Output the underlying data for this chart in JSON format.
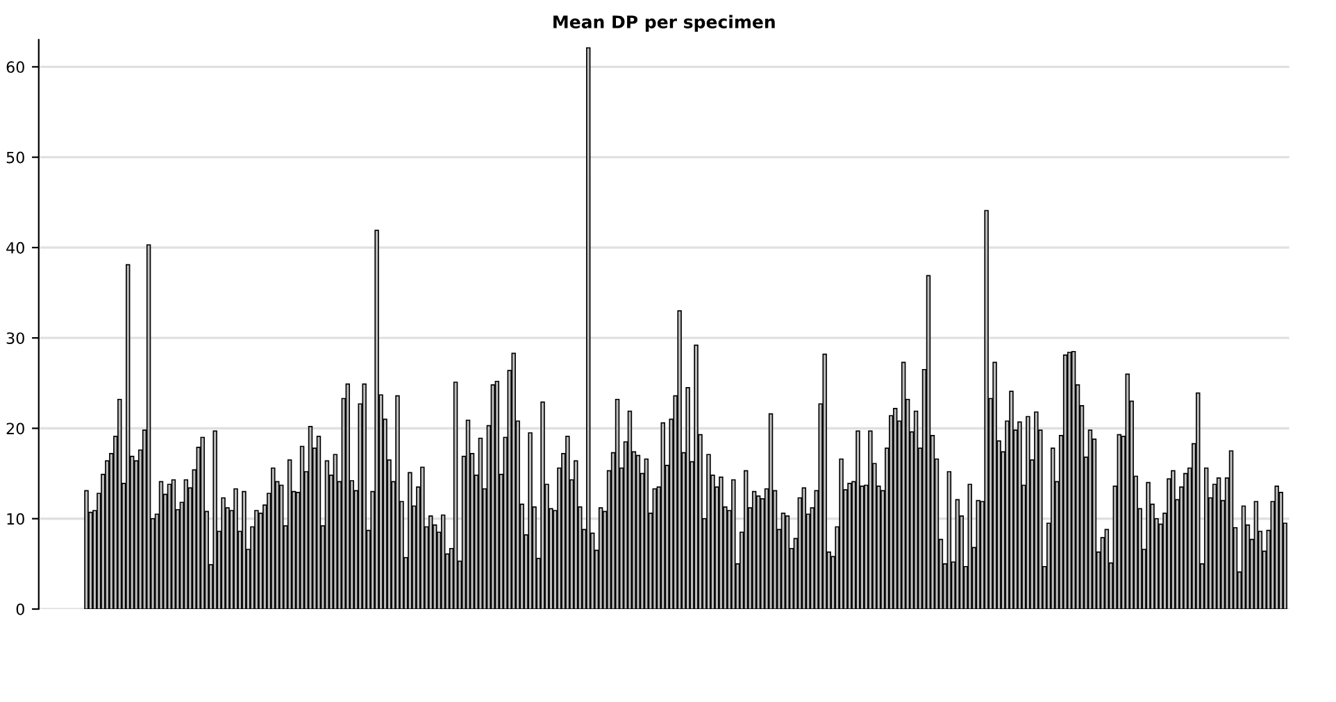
{
  "chart_data": {
    "type": "bar",
    "title": "Mean DP per specimen",
    "categories": [
      null,
      null,
      null,
      null,
      null,
      null,
      null,
      null,
      null,
      null,
      null,
      null,
      null,
      null,
      null,
      null,
      null,
      null,
      null,
      null,
      null,
      null,
      null,
      null,
      null,
      null,
      null,
      null,
      null,
      null,
      null,
      null,
      null,
      null,
      null,
      null,
      null,
      null,
      null,
      null,
      null,
      null,
      null,
      null,
      null,
      null,
      null,
      null,
      null,
      null,
      null,
      null,
      null,
      null,
      null,
      null,
      null,
      null,
      null,
      null,
      null,
      null,
      null,
      null,
      null,
      null,
      null,
      null,
      null,
      null,
      null,
      null,
      null,
      null,
      null,
      null,
      null,
      null,
      null,
      null,
      null,
      null,
      null,
      null,
      null,
      null,
      null,
      null,
      null,
      null,
      null,
      null,
      null,
      null,
      null,
      null,
      null,
      null,
      null,
      null,
      null,
      null,
      null,
      null,
      null,
      null,
      null,
      null,
      null,
      null,
      null,
      null,
      null,
      null,
      null,
      null,
      null,
      null,
      null,
      null,
      null,
      null,
      null,
      null,
      null,
      null,
      null,
      null,
      null,
      null,
      null,
      null,
      null,
      null,
      null,
      null,
      null,
      null,
      null,
      null,
      null,
      null,
      null,
      null,
      null,
      null,
      null,
      null,
      null,
      null,
      null,
      null,
      null,
      null,
      null,
      null,
      null,
      null,
      null,
      null,
      null,
      null,
      null,
      null,
      null,
      null,
      null,
      null,
      null,
      null,
      null,
      null,
      null,
      null,
      null,
      null,
      null,
      null,
      null,
      null,
      null,
      null,
      null,
      null,
      null,
      null,
      null,
      null,
      null,
      null,
      null,
      null,
      null,
      null,
      null,
      null,
      null,
      null,
      null,
      null,
      null,
      null,
      null,
      null,
      null,
      null,
      null,
      null,
      null,
      null,
      null,
      null,
      null,
      null,
      null,
      null,
      null,
      null,
      null,
      null,
      null,
      null,
      null,
      null,
      null,
      null,
      null,
      null,
      null,
      null,
      null,
      null,
      null,
      null,
      null,
      null,
      null,
      null,
      null,
      null,
      null,
      null,
      null,
      null,
      null,
      null,
      null,
      null,
      null,
      null,
      null,
      null,
      null,
      null,
      null,
      null,
      null,
      null,
      null,
      null,
      null,
      null,
      null,
      null,
      null,
      null,
      null,
      null,
      null,
      null,
      null,
      null,
      null,
      null,
      null,
      null,
      null,
      null,
      null,
      null,
      null,
      null,
      null,
      null,
      null,
      null,
      null,
      null,
      null,
      null
    ],
    "values": [
      13.1,
      10.7,
      10.9,
      12.8,
      14.9,
      16.4,
      17.2,
      19.1,
      23.2,
      13.9,
      38.1,
      16.9,
      16.4,
      17.6,
      19.8,
      40.3,
      10.0,
      10.5,
      14.1,
      12.7,
      13.8,
      14.3,
      11.0,
      11.8,
      14.3,
      13.4,
      15.4,
      17.9,
      19.0,
      10.8,
      4.9,
      19.7,
      8.6,
      12.3,
      11.2,
      10.9,
      13.3,
      8.6,
      13.0,
      6.6,
      9.1,
      10.9,
      10.6,
      11.5,
      12.8,
      15.6,
      14.1,
      13.7,
      9.2,
      16.5,
      13.0,
      12.9,
      18.0,
      15.2,
      20.2,
      17.8,
      19.1,
      9.2,
      16.4,
      14.8,
      17.1,
      14.1,
      23.3,
      24.9,
      14.2,
      13.1,
      22.7,
      24.9,
      8.7,
      13.0,
      41.9,
      23.7,
      21.0,
      16.5,
      14.1,
      23.6,
      11.9,
      5.7,
      15.1,
      11.4,
      13.5,
      15.7,
      9.1,
      10.3,
      9.3,
      8.5,
      10.4,
      6.1,
      6.7,
      25.1,
      5.3,
      16.9,
      20.9,
      17.2,
      14.8,
      18.9,
      13.3,
      20.3,
      24.8,
      25.2,
      14.9,
      19.0,
      26.4,
      28.3,
      20.8,
      11.6,
      8.2,
      19.5,
      11.3,
      5.6,
      22.9,
      13.8,
      11.1,
      10.9,
      15.6,
      17.2,
      19.1,
      14.3,
      16.4,
      11.3,
      8.8,
      62.1,
      8.4,
      6.5,
      11.2,
      10.8,
      15.3,
      17.3,
      23.2,
      15.6,
      18.5,
      21.9,
      17.4,
      17.0,
      15.0,
      16.6,
      10.6,
      13.3,
      13.5,
      20.6,
      15.9,
      21.0,
      23.6,
      33.0,
      17.3,
      24.5,
      16.3,
      29.2,
      19.3,
      10.0,
      17.1,
      14.8,
      13.5,
      14.6,
      11.3,
      10.9,
      14.3,
      5.0,
      8.5,
      15.3,
      11.2,
      13.0,
      12.5,
      12.2,
      13.3,
      21.6,
      13.1,
      8.8,
      10.6,
      10.3,
      6.7,
      7.8,
      12.3,
      13.4,
      10.5,
      11.2,
      13.1,
      22.7,
      28.2,
      6.3,
      5.8,
      9.1,
      16.6,
      13.2,
      13.9,
      14.1,
      19.7,
      13.6,
      13.7,
      19.7,
      16.1,
      13.6,
      13.1,
      17.8,
      21.4,
      22.2,
      20.8,
      27.3,
      23.2,
      19.6,
      21.9,
      17.8,
      26.5,
      36.9,
      19.2,
      16.6,
      7.7,
      5.0,
      15.2,
      5.2,
      12.1,
      10.3,
      4.7,
      13.8,
      6.8,
      12.0,
      11.9,
      44.1,
      23.3,
      27.3,
      18.6,
      17.4,
      20.8,
      24.1,
      19.8,
      20.7,
      13.7,
      21.3,
      16.5,
      21.8,
      19.8,
      4.7,
      9.5,
      17.8,
      14.1,
      19.2,
      28.1,
      28.4,
      28.5,
      24.8,
      22.5,
      16.8,
      19.8,
      18.8,
      6.3,
      7.9,
      8.8,
      5.1,
      13.6,
      19.3,
      19.1,
      26.0,
      23.0,
      14.7,
      11.1,
      6.6,
      14.0,
      11.6,
      10.0,
      9.4,
      10.6,
      14.4,
      15.3,
      12.1,
      13.5,
      15.0,
      15.6,
      18.3,
      23.9,
      5.0,
      15.6,
      12.3,
      13.8,
      14.5,
      12.0,
      14.5,
      17.5,
      9.0,
      4.1,
      11.4,
      9.3,
      7.7,
      11.9,
      8.6,
      6.4,
      8.7,
      11.9,
      13.6,
      12.9,
      9.5
    ],
    "color": "#bebebe",
    "ylim": [
      0,
      63
    ],
    "yticks": [
      0,
      10,
      20,
      30,
      40,
      50,
      60
    ],
    "grid": "y",
    "tick_labels": "y"
  }
}
